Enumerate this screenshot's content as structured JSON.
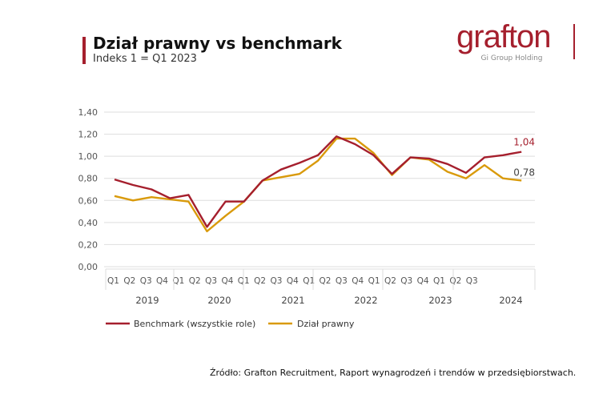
{
  "header": {
    "title": "Dział prawny vs benchmark",
    "subtitle": "Indeks 1 = Q1 2023"
  },
  "logo": {
    "word": "grafton",
    "sub": "Gi Group Holding"
  },
  "source": "Źródło: Grafton Recruitment, Raport wynagrodzeń i trendów w przedsiębiorstwach.",
  "chart_data": {
    "type": "line",
    "title": "Dział prawny vs benchmark",
    "subtitle": "Indeks 1 = Q1 2023",
    "quarter_labels": [
      "Q1",
      "Q2",
      "Q3",
      "Q4",
      "Q1",
      "Q2",
      "Q3",
      "Q4",
      "Q1",
      "Q2",
      "Q3",
      "Q4",
      "Q1",
      "Q2",
      "Q3",
      "Q4",
      "Q1",
      "Q2",
      "Q3",
      "Q4",
      "Q1",
      "Q2",
      "Q3"
    ],
    "year_labels": [
      "2019",
      "2020",
      "2021",
      "2022",
      "2023",
      "2024"
    ],
    "yticks": [
      "0,00",
      "0,20",
      "0,40",
      "0,60",
      "0,80",
      "1,00",
      "1,20",
      "1,40"
    ],
    "ylim": [
      0,
      1.4
    ],
    "grid": true,
    "legend": "bottom",
    "series": [
      {
        "name": "Benchmark (wszystkie role)",
        "color": "#a51f2d",
        "end_label": "1,04",
        "values": [
          0.79,
          0.74,
          0.7,
          0.62,
          0.65,
          0.36,
          0.59,
          0.59,
          0.78,
          0.88,
          0.94,
          1.01,
          1.18,
          1.11,
          1.01,
          0.84,
          0.99,
          0.98,
          0.93,
          0.85,
          0.99,
          1.01,
          1.04
        ]
      },
      {
        "name": "Dział prawny",
        "color": "#d99a0b",
        "end_label": "0,78",
        "values": [
          0.64,
          0.6,
          0.63,
          0.61,
          0.59,
          0.32,
          0.46,
          0.59,
          0.78,
          0.81,
          0.84,
          0.96,
          1.16,
          1.16,
          1.03,
          0.83,
          0.99,
          0.97,
          0.86,
          0.8,
          0.92,
          0.8,
          0.78
        ]
      }
    ]
  }
}
